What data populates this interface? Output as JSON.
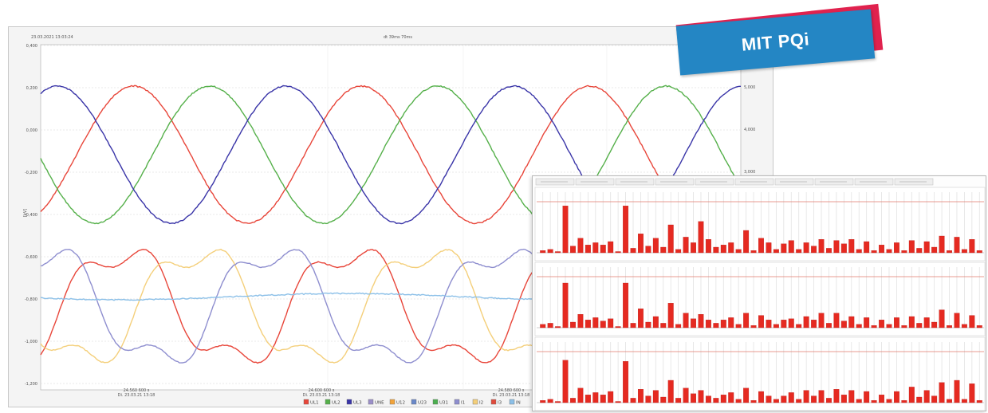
{
  "wave_window": {
    "timestamp": "23.03.2021 13:03:24",
    "duration": "dt 39ms 70ms",
    "unit_label": "[kV]",
    "left_ticks": [
      "0,400",
      "0,200",
      "0,000",
      "-0,200",
      "-0,400",
      "-0,600",
      "-0,800",
      "-1,000",
      "-1,200"
    ],
    "right_ticks": [
      "5,000",
      "4,000",
      "3,000"
    ],
    "x_ticks": [
      {
        "time": "24.560 600 s",
        "date": "Di. 23.03.21 13:18"
      },
      {
        "time": "24.600 600 s",
        "date": "Di. 23.03.21 13:18"
      },
      {
        "time": "24.580 600 s",
        "date": "Di. 23.03.21 13:18"
      }
    ],
    "legend": [
      {
        "label": "UL1",
        "color": "#e8463a"
      },
      {
        "label": "UL2",
        "color": "#55b04a"
      },
      {
        "label": "UL3",
        "color": "#3a35a8"
      },
      {
        "label": "UNE",
        "color": "#9b8fc9"
      },
      {
        "label": "U12",
        "color": "#f2a33a"
      },
      {
        "label": "U23",
        "color": "#6a88c9"
      },
      {
        "label": "U31",
        "color": "#4caf50"
      },
      {
        "label": "I1",
        "color": "#8e8ecf"
      },
      {
        "label": "I2",
        "color": "#f4cf7a"
      },
      {
        "label": "I3",
        "color": "#e04a3c"
      },
      {
        "label": "IN",
        "color": "#8cc0e8"
      }
    ]
  },
  "harmonics_window": {
    "tabs": [
      "",
      "",
      "",
      "",
      "",
      "",
      "",
      "",
      "",
      ""
    ],
    "panels": [
      {
        "scale": "",
        "values": [
          2,
          3,
          1,
          42,
          6,
          13,
          7,
          9,
          7,
          10,
          1,
          42,
          4,
          17,
          6,
          13,
          5,
          25,
          3,
          14,
          9,
          28,
          12,
          5,
          7,
          9,
          3,
          20,
          2,
          13,
          9,
          3,
          8,
          11,
          3,
          9,
          6,
          12,
          4,
          11,
          8,
          12,
          3,
          10,
          2,
          7,
          3,
          9,
          2,
          11,
          4,
          10,
          5,
          15,
          2,
          14,
          3,
          12,
          2
        ]
      },
      {
        "scale": "",
        "values": [
          3,
          4,
          1,
          40,
          5,
          12,
          7,
          9,
          6,
          8,
          1,
          40,
          4,
          17,
          5,
          10,
          4,
          22,
          3,
          13,
          8,
          12,
          7,
          4,
          7,
          9,
          3,
          13,
          2,
          11,
          7,
          3,
          7,
          8,
          3,
          10,
          7,
          13,
          4,
          13,
          6,
          10,
          3,
          9,
          2,
          7,
          3,
          9,
          2,
          10,
          4,
          9,
          5,
          16,
          2,
          13,
          3,
          11,
          2
        ]
      },
      {
        "scale": "",
        "values": [
          2,
          3,
          1,
          38,
          4,
          13,
          7,
          9,
          7,
          10,
          1,
          37,
          4,
          12,
          6,
          11,
          5,
          20,
          4,
          13,
          8,
          11,
          6,
          4,
          7,
          9,
          3,
          13,
          2,
          10,
          6,
          3,
          6,
          9,
          3,
          11,
          6,
          11,
          4,
          12,
          7,
          11,
          3,
          10,
          2,
          7,
          3,
          10,
          2,
          14,
          5,
          11,
          6,
          18,
          3,
          20,
          3,
          17,
          2
        ]
      }
    ]
  },
  "badge": {
    "label": "MIT PQi",
    "back_color": "#e0224e",
    "front_color": "#2486c4"
  }
}
